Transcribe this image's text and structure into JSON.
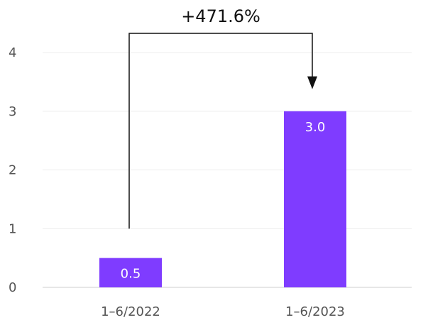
{
  "chart_data": {
    "type": "bar",
    "categories": [
      "1–6/2022",
      "1–6/2023"
    ],
    "values": [
      0.5,
      3.0
    ],
    "data_labels": [
      "0.5",
      "3.0"
    ],
    "ylim": [
      0,
      4
    ],
    "yticks": [
      0,
      1,
      2,
      3,
      4
    ],
    "grid": true,
    "bar_color": "#7f3cff",
    "annotation": {
      "text": "+471.6%",
      "from_category": "1–6/2022",
      "to_category": "1–6/2023",
      "from_value": 1.0,
      "to_value": 3.4
    }
  }
}
